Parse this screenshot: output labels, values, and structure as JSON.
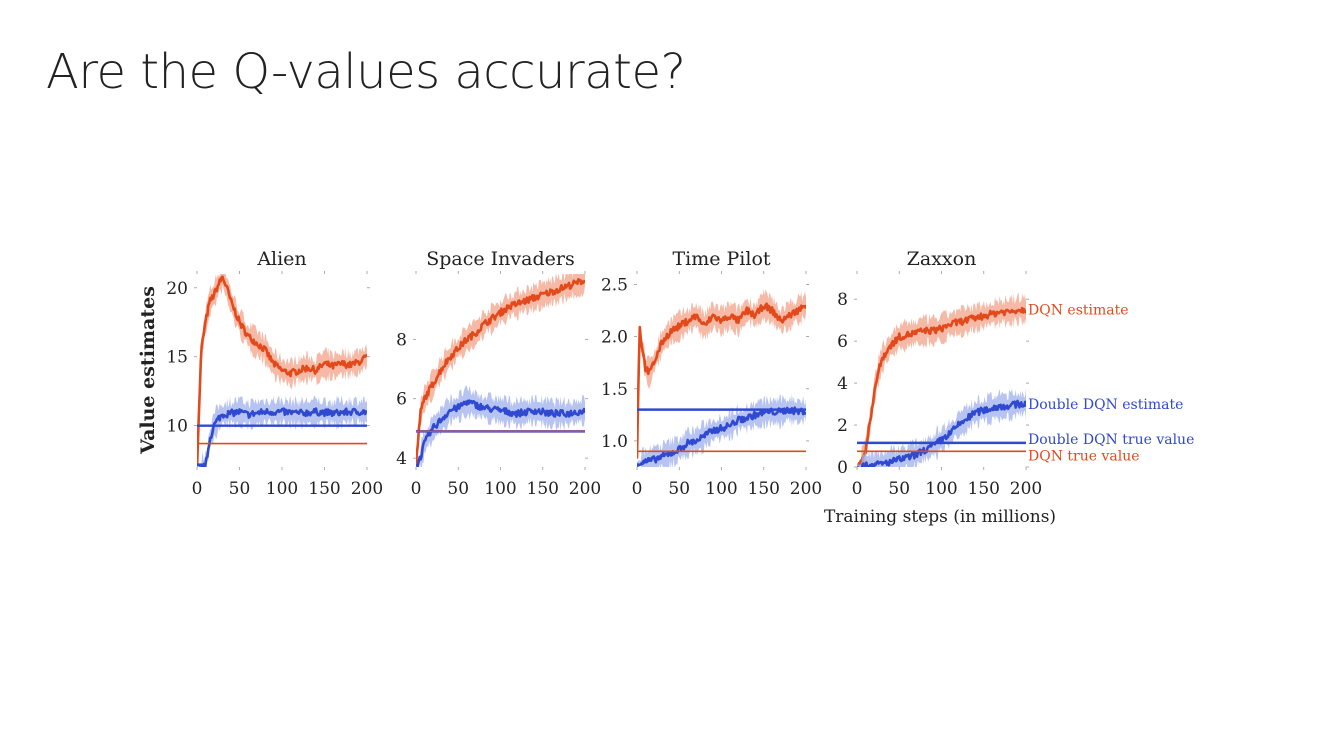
{
  "slide": {
    "title": "Are the Q-values accurate?"
  },
  "colors": {
    "dqn": "#e24a1c",
    "dqn_band": "#f2a288",
    "ddqn": "#2f49d1",
    "ddqn_band": "#9fb0ee"
  },
  "chart_data": [
    {
      "type": "line",
      "title": "Alien",
      "ylabel": "Value estimates",
      "xlabel": "",
      "xlim": [
        0,
        200
      ],
      "ylim": [
        7,
        21
      ],
      "xticks": [
        0,
        50,
        100,
        150,
        200
      ],
      "yticks": [
        10,
        15,
        20
      ],
      "series": [
        {
          "name": "DQN estimate",
          "x": [
            0,
            5,
            10,
            15,
            20,
            25,
            30,
            35,
            40,
            50,
            60,
            70,
            80,
            90,
            100,
            110,
            120,
            130,
            140,
            150,
            160,
            170,
            180,
            190,
            200
          ],
          "y": [
            7,
            15.5,
            17.5,
            19,
            19.5,
            20.2,
            20.8,
            20,
            19,
            17.5,
            16.5,
            16,
            15.5,
            14.5,
            14,
            13.8,
            14,
            14.2,
            14,
            14.5,
            14.3,
            14.5,
            14.4,
            14.6,
            15
          ]
        },
        {
          "name": "Double DQN estimate",
          "x": [
            0,
            5,
            10,
            15,
            20,
            25,
            30,
            40,
            50,
            60,
            80,
            100,
            120,
            140,
            160,
            180,
            200
          ],
          "y": [
            7,
            7,
            7,
            9,
            10,
            10.5,
            10.8,
            10.9,
            11,
            10.8,
            11,
            11,
            10.9,
            11,
            10.9,
            11,
            11
          ]
        },
        {
          "name": "Double DQN true value",
          "x": [
            0,
            200
          ],
          "y": [
            10,
            10
          ]
        },
        {
          "name": "DQN true value",
          "x": [
            0,
            200
          ],
          "y": [
            8.7,
            8.7
          ]
        }
      ]
    },
    {
      "type": "line",
      "title": "Space Invaders",
      "xlabel": "",
      "ylabel": "",
      "xlim": [
        0,
        200
      ],
      "ylim": [
        3.7,
        10.2
      ],
      "xticks": [
        0,
        50,
        100,
        150,
        200
      ],
      "yticks": [
        4,
        6,
        8
      ],
      "series": [
        {
          "name": "DQN estimate",
          "x": [
            0,
            5,
            10,
            20,
            30,
            40,
            50,
            60,
            70,
            80,
            90,
            100,
            110,
            120,
            130,
            140,
            150,
            160,
            170,
            180,
            190,
            200
          ],
          "y": [
            3.7,
            5.5,
            6,
            6.5,
            7,
            7.4,
            7.7,
            8,
            8.2,
            8.5,
            8.7,
            8.9,
            9.1,
            9.2,
            9.3,
            9.4,
            9.5,
            9.6,
            9.7,
            9.8,
            9.9,
            10
          ]
        },
        {
          "name": "Double DQN estimate",
          "x": [
            0,
            5,
            10,
            20,
            30,
            40,
            50,
            60,
            70,
            80,
            100,
            120,
            140,
            160,
            180,
            200
          ],
          "y": [
            3.7,
            4,
            4.5,
            5,
            5.3,
            5.6,
            5.7,
            5.9,
            5.8,
            5.7,
            5.6,
            5.5,
            5.6,
            5.5,
            5.5,
            5.6
          ]
        },
        {
          "name": "Double DQN true value",
          "x": [
            0,
            200
          ],
          "y": [
            4.9,
            4.9
          ]
        },
        {
          "name": "DQN true value",
          "x": [
            0,
            200
          ],
          "y": [
            4.9,
            4.9
          ]
        }
      ]
    },
    {
      "type": "line",
      "title": "Time Pilot",
      "xlabel": "",
      "ylabel": "",
      "xlim": [
        0,
        200
      ],
      "ylim": [
        0.75,
        2.6
      ],
      "xticks": [
        0,
        50,
        100,
        150,
        200
      ],
      "yticks": [
        1.0,
        1.5,
        2.0,
        2.5
      ],
      "series": [
        {
          "name": "DQN estimate",
          "x": [
            0,
            3,
            6,
            10,
            15,
            20,
            30,
            40,
            50,
            60,
            70,
            80,
            90,
            100,
            110,
            120,
            130,
            140,
            150,
            160,
            170,
            180,
            190,
            200
          ],
          "y": [
            0.85,
            2.1,
            1.9,
            1.7,
            1.65,
            1.75,
            1.95,
            2.05,
            2.1,
            2.15,
            2.2,
            2.1,
            2.2,
            2.15,
            2.2,
            2.15,
            2.25,
            2.2,
            2.3,
            2.25,
            2.15,
            2.2,
            2.25,
            2.3
          ]
        },
        {
          "name": "Double DQN estimate",
          "x": [
            0,
            10,
            20,
            30,
            40,
            50,
            60,
            70,
            80,
            90,
            100,
            110,
            120,
            130,
            140,
            150,
            160,
            170,
            180,
            190,
            200
          ],
          "y": [
            0.78,
            0.8,
            0.82,
            0.85,
            0.88,
            0.92,
            0.98,
            1.0,
            1.05,
            1.1,
            1.12,
            1.15,
            1.2,
            1.22,
            1.25,
            1.27,
            1.28,
            1.28,
            1.3,
            1.28,
            1.29
          ]
        },
        {
          "name": "Double DQN true value",
          "x": [
            0,
            200
          ],
          "y": [
            1.3,
            1.3
          ]
        },
        {
          "name": "DQN true value",
          "x": [
            0,
            200
          ],
          "y": [
            0.9,
            0.9
          ]
        }
      ]
    },
    {
      "type": "line",
      "title": "Zaxxon",
      "xlabel": "Training steps (in millions)",
      "ylabel": "",
      "xlim": [
        0,
        200
      ],
      "ylim": [
        0,
        9.2
      ],
      "xticks": [
        0,
        50,
        100,
        150,
        200
      ],
      "yticks": [
        0,
        2,
        4,
        6,
        8
      ],
      "annotations": [
        "DQN estimate",
        "Double DQN estimate",
        "Double DQN true value",
        "DQN true value"
      ],
      "series": [
        {
          "name": "DQN estimate",
          "x": [
            0,
            5,
            10,
            15,
            20,
            25,
            30,
            40,
            50,
            60,
            70,
            80,
            90,
            100,
            110,
            120,
            130,
            140,
            150,
            160,
            170,
            180,
            190,
            200
          ],
          "y": [
            0,
            0.2,
            0.8,
            2,
            3.5,
            4.5,
            5.2,
            5.8,
            6.2,
            6.3,
            6.4,
            6.5,
            6.5,
            6.6,
            6.8,
            6.9,
            7,
            7.1,
            7.2,
            7.3,
            7.4,
            7.4,
            7.5,
            7.5
          ]
        },
        {
          "name": "Double DQN estimate",
          "x": [
            0,
            10,
            20,
            30,
            40,
            50,
            60,
            70,
            80,
            90,
            100,
            110,
            120,
            130,
            140,
            150,
            160,
            170,
            180,
            190,
            200
          ],
          "y": [
            0,
            0.05,
            0.1,
            0.15,
            0.25,
            0.35,
            0.45,
            0.6,
            0.8,
            1.0,
            1.3,
            1.6,
            2,
            2.3,
            2.6,
            2.7,
            2.8,
            2.9,
            2.9,
            3,
            3
          ]
        },
        {
          "name": "Double DQN true value",
          "x": [
            0,
            200
          ],
          "y": [
            1.15,
            1.15
          ]
        },
        {
          "name": "DQN true value",
          "x": [
            0,
            200
          ],
          "y": [
            0.75,
            0.75
          ]
        }
      ]
    }
  ]
}
